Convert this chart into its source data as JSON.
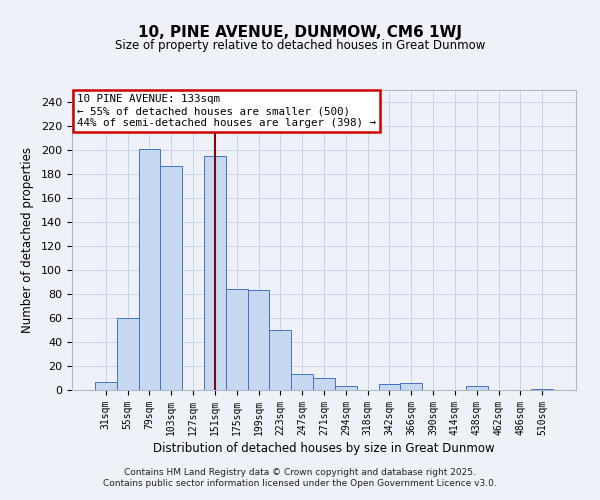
{
  "title": "10, PINE AVENUE, DUNMOW, CM6 1WJ",
  "subtitle": "Size of property relative to detached houses in Great Dunmow",
  "xlabel": "Distribution of detached houses by size in Great Dunmow",
  "ylabel": "Number of detached properties",
  "bar_labels": [
    "31sqm",
    "55sqm",
    "79sqm",
    "103sqm",
    "127sqm",
    "151sqm",
    "175sqm",
    "199sqm",
    "223sqm",
    "247sqm",
    "271sqm",
    "294sqm",
    "318sqm",
    "342sqm",
    "366sqm",
    "390sqm",
    "414sqm",
    "438sqm",
    "462sqm",
    "486sqm",
    "510sqm"
  ],
  "bar_values": [
    7,
    60,
    201,
    187,
    0,
    195,
    84,
    83,
    50,
    13,
    10,
    3,
    0,
    5,
    6,
    0,
    0,
    3,
    0,
    0,
    1
  ],
  "bar_color": "#c6d9f1",
  "bar_edge_color": "#4472c4",
  "vline_pos": 5,
  "vline_color": "#8b0000",
  "annotation_line1": "10 PINE AVENUE: 133sqm",
  "annotation_line2": "← 55% of detached houses are smaller (500)",
  "annotation_line3": "44% of semi-detached houses are larger (398) →",
  "annotation_box_color": "white",
  "annotation_box_edge_color": "#cc0000",
  "ylim": [
    0,
    250
  ],
  "yticks": [
    0,
    20,
    40,
    60,
    80,
    100,
    120,
    140,
    160,
    180,
    200,
    220,
    240
  ],
  "footer1": "Contains HM Land Registry data © Crown copyright and database right 2025.",
  "footer2": "Contains public sector information licensed under the Open Government Licence v3.0.",
  "bg_color": "#eef2f8",
  "grid_color": "#c8d4e8",
  "fig_width": 6.0,
  "fig_height": 5.0,
  "dpi": 100
}
